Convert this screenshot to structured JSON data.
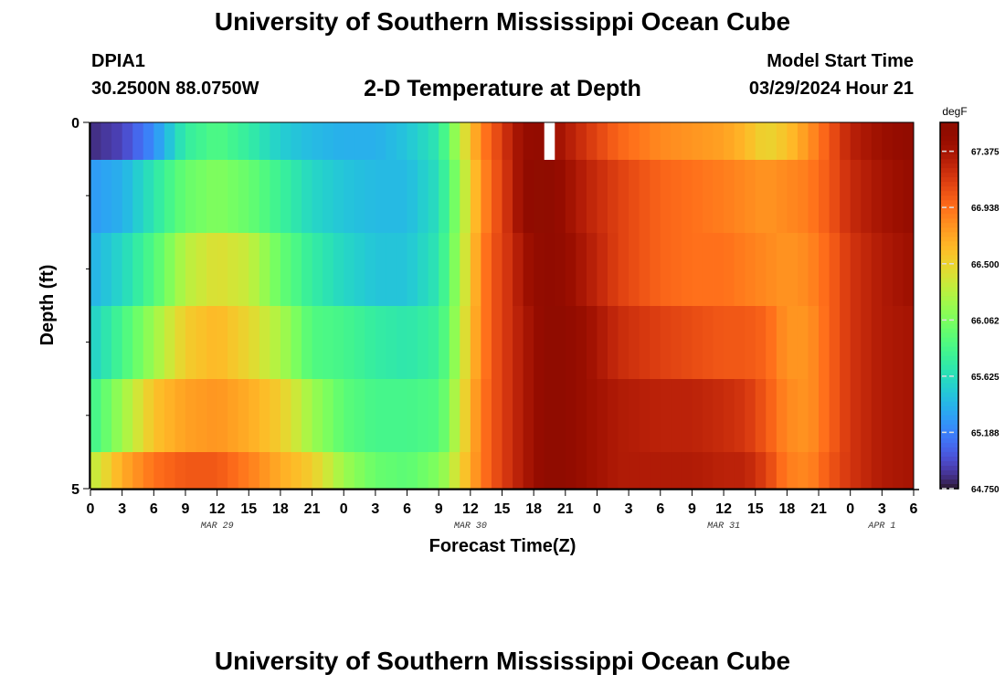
{
  "header": {
    "title": "University of Southern Mississippi Ocean Cube",
    "station_id": "DPIA1",
    "station_coords": "30.2500N  88.0750W",
    "chart_title": "2-D Temperature at Depth",
    "model_start_label": "Model Start Time",
    "model_start_value": "03/29/2024 Hour 21"
  },
  "footer": {
    "title": "University of Southern Mississippi Ocean Cube"
  },
  "chart_data": {
    "type": "heatmap",
    "title": "2-D Temperature at Depth",
    "xlabel": "Forecast Time(Z)",
    "ylabel": "Depth (ft)",
    "x_unit": "hours since 2024-03-29 00Z",
    "x_range": [
      0,
      78
    ],
    "x_tick_step": 3,
    "x_tick_labels": [
      "0",
      "3",
      "6",
      "9",
      "12",
      "15",
      "18",
      "21",
      "0",
      "3",
      "6",
      "9",
      "12",
      "15",
      "18",
      "21",
      "0",
      "3",
      "6",
      "9",
      "12",
      "15",
      "18",
      "21",
      "0",
      "3",
      "6"
    ],
    "date_labels": [
      {
        "text": "MAR 29",
        "hour": 12
      },
      {
        "text": "MAR 30",
        "hour": 36
      },
      {
        "text": "MAR 31",
        "hour": 60
      },
      {
        "text": "APR 1",
        "hour": 75
      }
    ],
    "y_range": [
      0,
      5
    ],
    "y_tick_labels": [
      "0",
      "5"
    ],
    "depth_levels": [
      0,
      1,
      2,
      3,
      4,
      5
    ],
    "colorbar": {
      "unit": "degF",
      "range": [
        64.75,
        67.6
      ],
      "tick_labels": [
        "67.375",
        "66.938",
        "66.500",
        "66.062",
        "65.625",
        "65.188",
        "64.750"
      ],
      "tick_values": [
        67.375,
        66.938,
        66.5,
        66.062,
        65.625,
        65.188,
        64.75
      ]
    },
    "key_points": [
      [
        0,
        64.85,
        65.3,
        65.4,
        65.55,
        65.8,
        66.3
      ],
      [
        3,
        64.95,
        65.4,
        65.6,
        65.85,
        66.2,
        66.7
      ],
      [
        6,
        65.25,
        65.7,
        65.9,
        66.2,
        66.6,
        66.95
      ],
      [
        9,
        65.75,
        66.0,
        66.3,
        66.55,
        66.75,
        67.05
      ],
      [
        12,
        65.9,
        66.1,
        66.45,
        66.65,
        66.8,
        67.05
      ],
      [
        15,
        65.75,
        66.0,
        66.35,
        66.5,
        66.7,
        66.9
      ],
      [
        18,
        65.55,
        65.8,
        66.0,
        66.25,
        66.55,
        66.7
      ],
      [
        21,
        65.45,
        65.6,
        65.75,
        65.9,
        66.2,
        66.55
      ],
      [
        24,
        65.4,
        65.5,
        65.6,
        65.85,
        65.95,
        66.2
      ],
      [
        27,
        65.4,
        65.45,
        65.5,
        65.75,
        65.85,
        66.0
      ],
      [
        30,
        65.5,
        65.45,
        65.5,
        65.7,
        65.85,
        65.95
      ],
      [
        33,
        65.7,
        65.65,
        65.7,
        65.8,
        65.9,
        66.1
      ],
      [
        34,
        66.0,
        65.9,
        65.95,
        66.0,
        66.1,
        66.25
      ],
      [
        35,
        66.3,
        66.2,
        66.25,
        66.3,
        66.4,
        66.5
      ],
      [
        36,
        66.6,
        66.5,
        66.55,
        66.6,
        66.65,
        66.7
      ],
      [
        37,
        66.85,
        66.8,
        66.85,
        66.85,
        66.9,
        66.9
      ],
      [
        38,
        67.05,
        67.0,
        67.05,
        67.05,
        67.05,
        67.05
      ],
      [
        39,
        67.15,
        67.15,
        67.15,
        67.15,
        67.15,
        67.15
      ],
      [
        40,
        67.35,
        67.3,
        67.25,
        67.25,
        67.25,
        67.25
      ],
      [
        41,
        67.45,
        67.5,
        67.4,
        67.35,
        67.35,
        67.35
      ],
      [
        42,
        67.55,
        67.6,
        67.5,
        67.45,
        67.45,
        67.45
      ],
      [
        43,
        67.5,
        67.6,
        67.55,
        67.55,
        67.55,
        67.55
      ],
      [
        44,
        67.45,
        67.55,
        67.55,
        67.6,
        67.6,
        67.6
      ],
      [
        45,
        67.35,
        67.45,
        67.5,
        67.55,
        67.55,
        67.55
      ],
      [
        47,
        67.2,
        67.3,
        67.35,
        67.45,
        67.45,
        67.45
      ],
      [
        50,
        67.0,
        67.15,
        67.15,
        67.25,
        67.35,
        67.35
      ],
      [
        54,
        66.85,
        67.0,
        67.0,
        67.15,
        67.3,
        67.35
      ],
      [
        57,
        66.8,
        66.95,
        66.95,
        67.1,
        67.3,
        67.35
      ],
      [
        60,
        66.75,
        66.9,
        66.95,
        67.05,
        67.25,
        67.3
      ],
      [
        62,
        66.65,
        66.85,
        66.9,
        67.05,
        67.2,
        67.3
      ],
      [
        64,
        66.5,
        66.8,
        66.85,
        67.0,
        67.05,
        67.15
      ],
      [
        66,
        66.6,
        66.85,
        66.8,
        66.8,
        66.85,
        66.9
      ],
      [
        68,
        66.8,
        66.9,
        66.85,
        66.8,
        66.8,
        66.85
      ],
      [
        70,
        67.05,
        67.05,
        67.0,
        67.0,
        67.0,
        67.05
      ],
      [
        72,
        67.3,
        67.25,
        67.2,
        67.2,
        67.2,
        67.2
      ],
      [
        75,
        67.45,
        67.4,
        67.35,
        67.35,
        67.35,
        67.35
      ],
      [
        78,
        67.55,
        67.5,
        67.45,
        67.4,
        67.4,
        67.4
      ]
    ],
    "missing_cells": [
      {
        "hour": 43,
        "depth_row": 0
      }
    ],
    "grid": false
  }
}
